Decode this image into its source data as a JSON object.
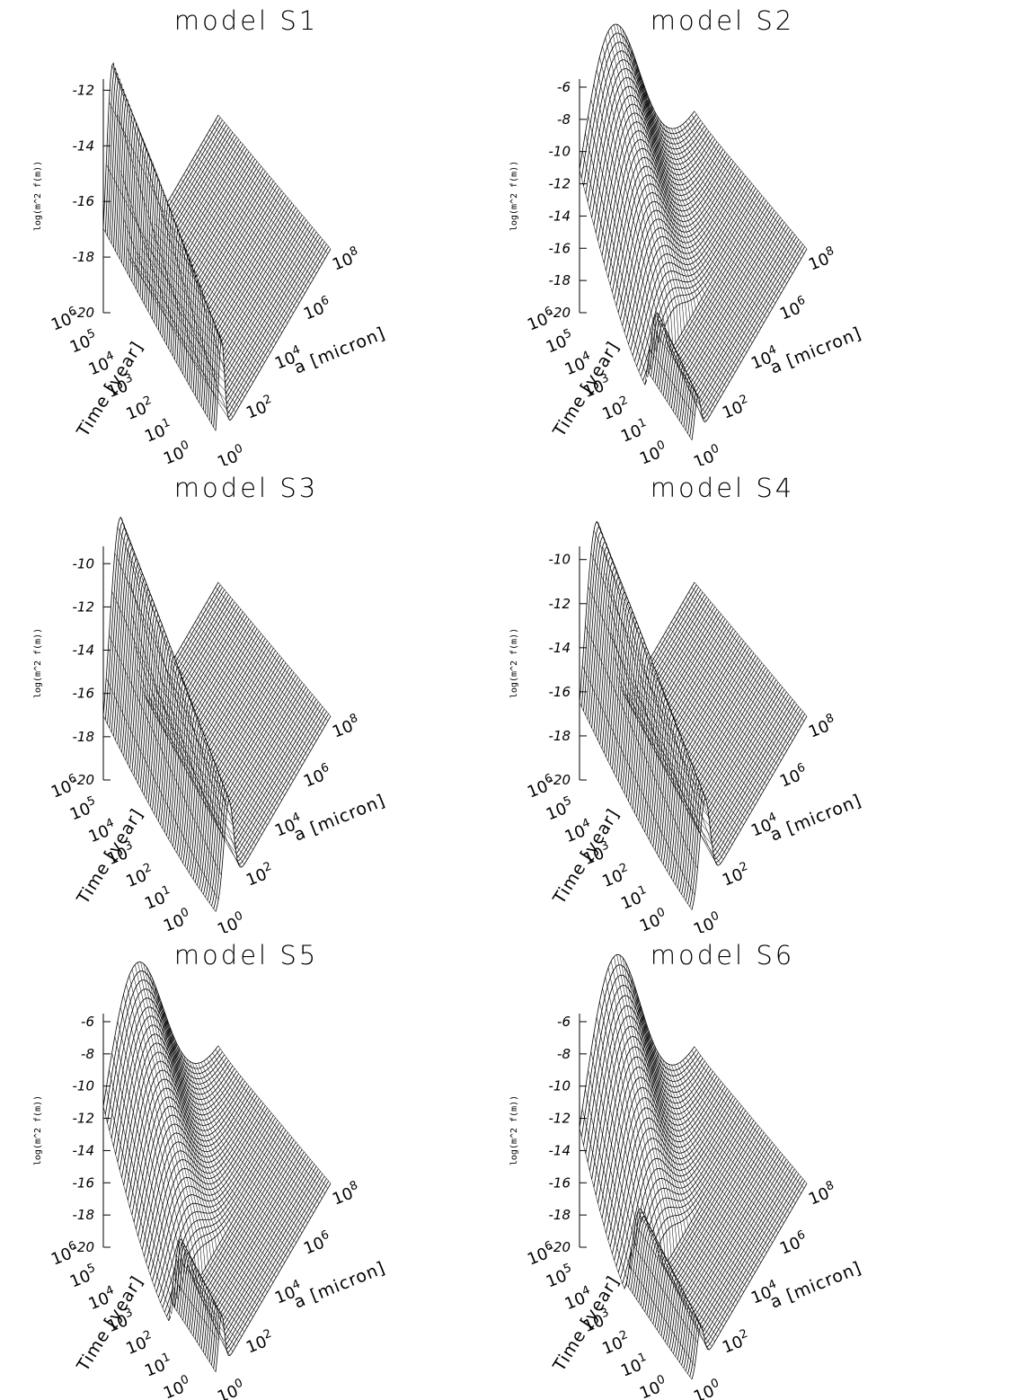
{
  "chart_data": [
    {
      "type": "surface",
      "title": "model S1",
      "xlabel": "a [micron]",
      "ylabel": "Time [year]",
      "zlabel": "log(m^2 f(m))",
      "x_tick_labels": [
        "10^0",
        "10^2",
        "10^4",
        "10^6",
        "10^8"
      ],
      "y_tick_labels": [
        "10^0",
        "10^1",
        "10^2",
        "10^3",
        "10^4",
        "10^5",
        "10^6"
      ],
      "z_tick_labels": [
        "-20",
        "-18",
        "-16",
        "-14",
        "-12"
      ],
      "zlim": [
        -20,
        -11.6
      ],
      "peaks": [
        {
          "log_a_center": 0.4,
          "log_a_width": 0.35,
          "log_t_start": 0.0,
          "log_t_end": 6.0,
          "log_z_start": -16.5,
          "log_z_end": -11.6
        }
      ]
    },
    {
      "type": "surface",
      "title": "model S2",
      "xlabel": "a [micron]",
      "ylabel": "Time [year]",
      "zlabel": "log(m^2 f(m))",
      "x_tick_labels": [
        "10^0",
        "10^2",
        "10^4",
        "10^6",
        "10^8"
      ],
      "y_tick_labels": [
        "10^0",
        "10^1",
        "10^2",
        "10^3",
        "10^4",
        "10^5",
        "10^6"
      ],
      "z_tick_labels": [
        "-20",
        "-18",
        "-16",
        "-14",
        "-12",
        "-10",
        "-8",
        "-6"
      ],
      "zlim": [
        -20,
        -5.5
      ],
      "peaks": [
        {
          "log_a_center": 0.4,
          "log_a_width": 0.35,
          "log_t_start": 0.0,
          "log_t_end": 2.5,
          "log_z_start": -17.5,
          "log_z_end": -16.0
        },
        {
          "log_a_center": 1.8,
          "log_a_width": 1.6,
          "log_t_start": 2.5,
          "log_t_end": 6.0,
          "log_z_start": -18.0,
          "log_z_end": -5.6
        }
      ]
    },
    {
      "type": "surface",
      "title": "model S3",
      "xlabel": "a [micron]",
      "ylabel": "Time [year]",
      "zlabel": "log(m^2 f(m))",
      "x_tick_labels": [
        "10^0",
        "10^2",
        "10^4",
        "10^6",
        "10^8"
      ],
      "y_tick_labels": [
        "10^0",
        "10^1",
        "10^2",
        "10^3",
        "10^4",
        "10^5",
        "10^6"
      ],
      "z_tick_labels": [
        "-20",
        "-18",
        "-16",
        "-14",
        "-12",
        "-10"
      ],
      "zlim": [
        -20,
        -9.2
      ],
      "peaks": [
        {
          "log_a_center": 0.9,
          "log_a_width": 0.55,
          "log_t_start": 0.0,
          "log_t_end": 6.0,
          "log_z_start": -15.8,
          "log_z_end": -9.2
        }
      ]
    },
    {
      "type": "surface",
      "title": "model S4",
      "xlabel": "a [micron]",
      "ylabel": "Time [year]",
      "zlabel": "log(m^2 f(m))",
      "x_tick_labels": [
        "10^0",
        "10^2",
        "10^4",
        "10^6",
        "10^8"
      ],
      "y_tick_labels": [
        "10^0",
        "10^1",
        "10^2",
        "10^3",
        "10^4",
        "10^5",
        "10^6"
      ],
      "z_tick_labels": [
        "-20",
        "-18",
        "-16",
        "-14",
        "-12",
        "-10"
      ],
      "zlim": [
        -20,
        -9.4
      ],
      "peaks": [
        {
          "log_a_center": 0.9,
          "log_a_width": 0.6,
          "log_t_start": 0.0,
          "log_t_end": 6.0,
          "log_z_start": -15.8,
          "log_z_end": -9.6
        }
      ]
    },
    {
      "type": "surface",
      "title": "model S5",
      "xlabel": "a [micron]",
      "ylabel": "Time [year]",
      "zlabel": "log(m^2 f(m))",
      "x_tick_labels": [
        "10^0",
        "10^2",
        "10^4",
        "10^6",
        "10^8"
      ],
      "y_tick_labels": [
        "10^0",
        "10^1",
        "10^2",
        "10^3",
        "10^4",
        "10^5",
        "10^6"
      ],
      "z_tick_labels": [
        "-20",
        "-18",
        "-16",
        "-14",
        "-12",
        "-10",
        "-8",
        "-6"
      ],
      "zlim": [
        -20,
        -5.5
      ],
      "peaks": [
        {
          "log_a_center": 0.4,
          "log_a_width": 0.35,
          "log_t_start": 0.0,
          "log_t_end": 2.5,
          "log_z_start": -16.5,
          "log_z_end": -15.5
        },
        {
          "log_a_center": 1.8,
          "log_a_width": 1.6,
          "log_t_start": 2.5,
          "log_t_end": 6.0,
          "log_z_start": -18.5,
          "log_z_end": -5.8
        }
      ]
    },
    {
      "type": "surface",
      "title": "model S6",
      "xlabel": "a [micron]",
      "ylabel": "Time [year]",
      "zlabel": "log(m^2 f(m))",
      "x_tick_labels": [
        "10^0",
        "10^2",
        "10^4",
        "10^6",
        "10^8"
      ],
      "y_tick_labels": [
        "10^0",
        "10^1",
        "10^2",
        "10^3",
        "10^4",
        "10^5",
        "10^6"
      ],
      "z_tick_labels": [
        "-20",
        "-18",
        "-16",
        "-14",
        "-12",
        "-10",
        "-8",
        "-6"
      ],
      "zlim": [
        -20,
        -5.5
      ],
      "peaks": [
        {
          "log_a_center": 0.6,
          "log_a_width": 0.4,
          "log_t_start": 0.0,
          "log_t_end": 3.5,
          "log_z_start": -17.5,
          "log_z_end": -15.5
        },
        {
          "log_a_center": 2.0,
          "log_a_width": 1.5,
          "log_t_start": 3.0,
          "log_t_end": 6.0,
          "log_z_start": -18.5,
          "log_z_end": -5.6
        }
      ]
    }
  ]
}
